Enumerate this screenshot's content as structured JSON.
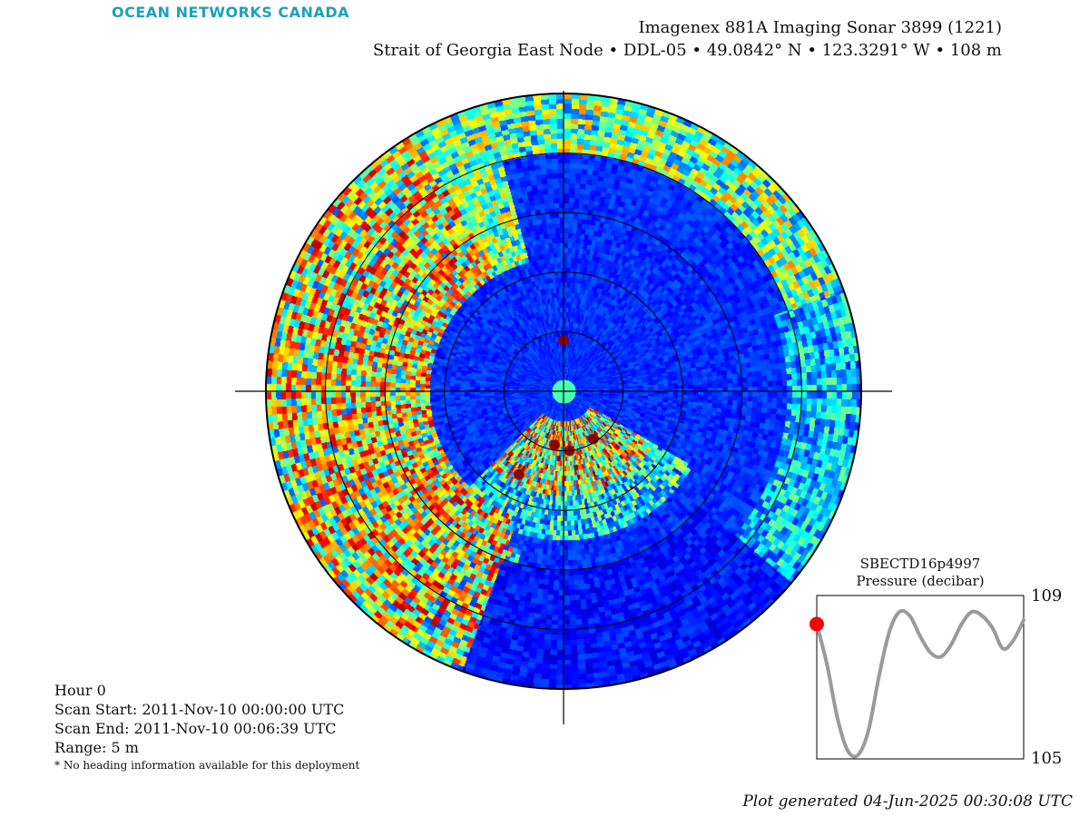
{
  "brand": "OCEAN NETWORKS CANADA",
  "header": {
    "line1": "Imagenex 881A Imaging Sonar 3899 (1221)",
    "line2": "Strait of Georgia East Node • DDL-05 • 49.0842° N • 123.3291° W • 108 m"
  },
  "info": {
    "hour": "Hour 0",
    "scan_start": "Scan Start: 2011-Nov-10 00:00:00 UTC",
    "scan_end": "Scan End: 2011-Nov-10 00:06:39 UTC",
    "range": "Range: 5 m",
    "note": "* No heading information available for this deployment"
  },
  "footer": "Plot generated 04-Jun-2025 00:30:08 UTC",
  "colors": {
    "low": "#00008f",
    "mid": "#00a0ff",
    "high": "#8b0000",
    "line_gray": "#9a9a9a",
    "marker_red": "#ff0000",
    "brand": "#1ea0bd"
  },
  "chart_data": [
    {
      "type": "heatmap",
      "projection": "polar",
      "range_m": 5,
      "range_rings_m": [
        1,
        2,
        3,
        4,
        5
      ],
      "colormap": "jet",
      "title": "",
      "grid": true
    },
    {
      "type": "line",
      "title": "SBECTD16p4997",
      "ylabel": "Pressure (decibar)",
      "ylim": [
        105,
        109
      ],
      "yticks": [
        "109",
        "105"
      ],
      "x": [
        0,
        0.05,
        0.1,
        0.15,
        0.2,
        0.25,
        0.3,
        0.35,
        0.4,
        0.45,
        0.5,
        0.55,
        0.6,
        0.65,
        0.7,
        0.75,
        0.8,
        0.85,
        0.9,
        0.95,
        1.0
      ],
      "values": [
        108.3,
        107.3,
        106.0,
        105.2,
        105.1,
        105.7,
        107.0,
        108.1,
        108.6,
        108.5,
        108.0,
        107.6,
        107.5,
        107.8,
        108.3,
        108.6,
        108.5,
        108.2,
        107.7,
        107.9,
        108.4
      ],
      "marker": {
        "x": 0,
        "y": 108.3,
        "color": "#ff0000"
      }
    }
  ]
}
